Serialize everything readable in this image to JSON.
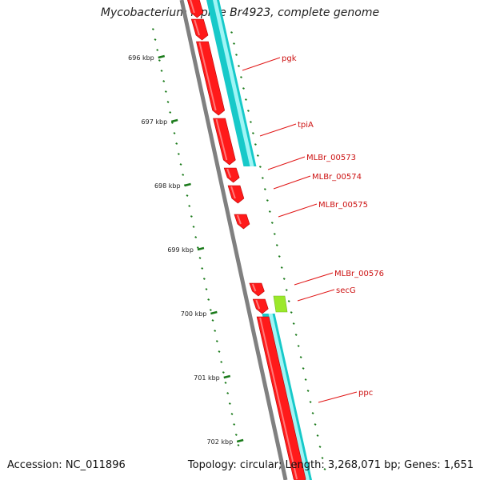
{
  "header": {
    "title": "Mycobacterium leprae Br4923, complete genome"
  },
  "footer": {
    "accession": "Accession: NC_011896",
    "topology": "Topology: circular; Length: 3,268,071 bp; Genes: 1,651"
  },
  "ticks": [
    "696 kbp",
    "697 kbp",
    "698 kbp",
    "699 kbp",
    "700 kbp",
    "701 kbp",
    "702 kbp"
  ],
  "gene_labels": [
    "pgk",
    "tpiA",
    "MLBr_00573",
    "MLBr_00574",
    "MLBr_00575",
    "MLBr_00576",
    "secG",
    "ppc"
  ],
  "colors": {
    "cds": "#ff1a1a",
    "cds_dark": "#b80000",
    "gene_track": "#17c9c9",
    "gene_track_light": "#9ff5f5",
    "secG": "#9be82a",
    "backbone": "#808080",
    "tick": "#1a7a1a",
    "label": "#cc1111"
  }
}
